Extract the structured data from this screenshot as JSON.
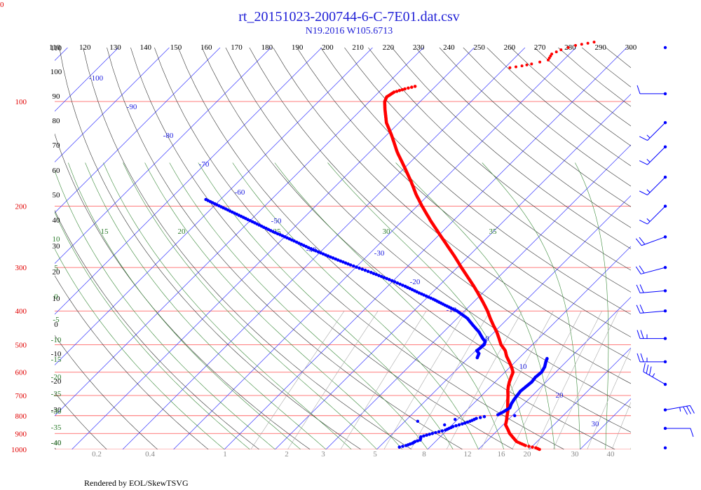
{
  "chart_data": {
    "type": "skew-t",
    "title": "rt_20151023-200744-6-C-7E01.dat.csv",
    "subtitle": "N19.2016 W105.6713",
    "footer": "Rendered by EOL/SkewTSVG",
    "corner_label": "0",
    "pressure_ticks": [
      "100",
      "200",
      "300",
      "400",
      "500",
      "600",
      "700",
      "800",
      "900",
      "1000"
    ],
    "theta_ticks": [
      "110",
      "120",
      "130",
      "140",
      "150",
      "160",
      "170",
      "180",
      "190",
      "200",
      "210",
      "220",
      "230",
      "240",
      "250",
      "260",
      "270",
      "280",
      "290",
      "300"
    ],
    "temperature_ticks": [
      "-100",
      "-90",
      "-80",
      "-70",
      "-60",
      "-50",
      "-40",
      "-30",
      "-20",
      "-10",
      "0",
      "10",
      "20",
      "30"
    ],
    "left_isotherm_ticks": [
      "110",
      "100",
      "90",
      "80",
      "70",
      "60",
      "50",
      "40",
      "30",
      "20",
      "10",
      "0",
      "-10",
      "-20",
      "-30",
      "-40"
    ],
    "moist_adiabat_ticks_top": [
      "15",
      "20",
      "25",
      "30",
      "35"
    ],
    "moist_adiabat_ticks_left": [
      "10",
      "5",
      "0",
      "-5",
      "-10",
      "-15",
      "-20",
      "-25",
      "-30",
      "-35",
      "-40"
    ],
    "mixing_ratio_ticks": [
      "0.2",
      "0.4",
      "1",
      "2",
      "3",
      "5",
      "8",
      "12",
      "16",
      "20",
      "30",
      "40"
    ],
    "temperature_series": {
      "name": "Temperature",
      "color": "#ff0000",
      "points": [
        {
          "p": 1000,
          "t": 22
        },
        {
          "p": 990,
          "t": 21
        },
        {
          "p": 975,
          "t": 18.5
        },
        {
          "p": 950,
          "t": 16
        },
        {
          "p": 925,
          "t": 14.5
        },
        {
          "p": 900,
          "t": 13
        },
        {
          "p": 875,
          "t": 11.8
        },
        {
          "p": 850,
          "t": 10.5
        },
        {
          "p": 825,
          "t": 9.8
        },
        {
          "p": 800,
          "t": 9
        },
        {
          "p": 775,
          "t": 8.2
        },
        {
          "p": 750,
          "t": 7.2
        },
        {
          "p": 725,
          "t": 6.2
        },
        {
          "p": 700,
          "t": 5.2
        },
        {
          "p": 680,
          "t": 4.3
        },
        {
          "p": 660,
          "t": 3.5
        },
        {
          "p": 640,
          "t": 2.8
        },
        {
          "p": 620,
          "t": 2.2
        },
        {
          "p": 600,
          "t": 1.6
        },
        {
          "p": 580,
          "t": 0.3
        },
        {
          "p": 560,
          "t": -1.2
        },
        {
          "p": 540,
          "t": -2.8
        },
        {
          "p": 520,
          "t": -4.2
        },
        {
          "p": 500,
          "t": -6.2
        },
        {
          "p": 480,
          "t": -7.8
        },
        {
          "p": 460,
          "t": -9.5
        },
        {
          "p": 440,
          "t": -11.5
        },
        {
          "p": 420,
          "t": -13.5
        },
        {
          "p": 400,
          "t": -15.5
        },
        {
          "p": 380,
          "t": -17.8
        },
        {
          "p": 360,
          "t": -20.3
        },
        {
          "p": 340,
          "t": -23.0
        },
        {
          "p": 320,
          "t": -26.0
        },
        {
          "p": 300,
          "t": -29.2
        },
        {
          "p": 280,
          "t": -32.5
        },
        {
          "p": 260,
          "t": -36.2
        },
        {
          "p": 240,
          "t": -40.2
        },
        {
          "p": 220,
          "t": -44.5
        },
        {
          "p": 200,
          "t": -49.0
        },
        {
          "p": 185,
          "t": -52.5
        },
        {
          "p": 170,
          "t": -56.0
        },
        {
          "p": 155,
          "t": -60.0
        },
        {
          "p": 140,
          "t": -64.5
        },
        {
          "p": 125,
          "t": -69.0
        },
        {
          "p": 115,
          "t": -72.5
        },
        {
          "p": 105,
          "t": -75.5
        },
        {
          "p": 100,
          "t": -77.0
        },
        {
          "p": 97,
          "t": -77.5
        },
        {
          "p": 94,
          "t": -77.0
        },
        {
          "p": 92,
          "t": -75.5
        },
        {
          "p": 90,
          "t": -73.5
        }
      ],
      "upper_points": [
        {
          "p": 80,
          "t": -59
        },
        {
          "p": 79,
          "t": -57
        },
        {
          "p": 78,
          "t": -55.5
        },
        {
          "p": 76,
          "t": -53
        },
        {
          "p": 73,
          "t": -53.5
        },
        {
          "p": 71,
          "t": -52.5
        },
        {
          "p": 69,
          "t": -50.5
        },
        {
          "p": 68,
          "t": -48.5
        },
        {
          "p": 67,
          "t": -46.5
        }
      ]
    },
    "dewpoint_series": {
      "name": "Dewpoint",
      "color": "#0000ff",
      "points": [
        {
          "p": 985,
          "t": -6.0
        },
        {
          "p": 975,
          "t": -5.0
        },
        {
          "p": 960,
          "t": -4.2
        },
        {
          "p": 950,
          "t": -4.0
        },
        {
          "p": 940,
          "t": -3.3
        },
        {
          "p": 920,
          "t": -3.8
        },
        {
          "p": 900,
          "t": -2.2
        },
        {
          "p": 880,
          "t": -0.3
        },
        {
          "p": 860,
          "t": 0.5
        },
        {
          "p": 845,
          "t": 1.8
        },
        {
          "p": 830,
          "t": 2.8
        },
        {
          "p": 815,
          "t": 3.5
        },
        {
          "p": 800,
          "t": 5.3
        }
      ],
      "extra_points": [
        {
          "p": 800,
          "t": 10.5
        },
        {
          "p": 830,
          "t": -7.5
        },
        {
          "p": 820,
          "t": -0.5
        },
        {
          "p": 850,
          "t": -1.5
        }
      ],
      "mid_points": [
        {
          "p": 795,
          "t": 7.0
        },
        {
          "p": 780,
          "t": 7.5
        },
        {
          "p": 760,
          "t": 8.0
        },
        {
          "p": 740,
          "t": 7.5
        },
        {
          "p": 720,
          "t": 7.2
        },
        {
          "p": 700,
          "t": 7.0
        },
        {
          "p": 680,
          "t": 6.8
        },
        {
          "p": 660,
          "t": 7.0
        },
        {
          "p": 640,
          "t": 7.2
        },
        {
          "p": 620,
          "t": 7.0
        },
        {
          "p": 600,
          "t": 7.2
        },
        {
          "p": 580,
          "t": 6.8
        },
        {
          "p": 560,
          "t": 6.0
        },
        {
          "p": 545,
          "t": 5.5
        }
      ],
      "upper_points": [
        {
          "p": 545,
          "t": -8.3
        },
        {
          "p": 530,
          "t": -8.8
        },
        {
          "p": 520,
          "t": -9.8
        },
        {
          "p": 510,
          "t": -9.6
        },
        {
          "p": 500,
          "t": -9.5
        },
        {
          "p": 490,
          "t": -9.9
        },
        {
          "p": 480,
          "t": -11.0
        },
        {
          "p": 460,
          "t": -13.0
        },
        {
          "p": 440,
          "t": -15.5
        },
        {
          "p": 420,
          "t": -18.0
        },
        {
          "p": 400,
          "t": -21.5
        },
        {
          "p": 385,
          "t": -25.0
        },
        {
          "p": 370,
          "t": -28.5
        },
        {
          "p": 355,
          "t": -32.5
        },
        {
          "p": 340,
          "t": -36.5
        },
        {
          "p": 325,
          "t": -41.0
        },
        {
          "p": 310,
          "t": -46.0
        },
        {
          "p": 295,
          "t": -51.5
        },
        {
          "p": 280,
          "t": -57.0
        },
        {
          "p": 265,
          "t": -62.5
        },
        {
          "p": 250,
          "t": -68.0
        },
        {
          "p": 235,
          "t": -74.0
        },
        {
          "p": 220,
          "t": -80.0
        },
        {
          "p": 205,
          "t": -86.5
        },
        {
          "p": 190,
          "t": -93.5
        }
      ]
    },
    "wind_barbs": [
      {
        "p": 70,
        "dir": 0,
        "speed": 0
      },
      {
        "p": 95,
        "dir": 270,
        "speed": 10
      },
      {
        "p": 115,
        "dir": 225,
        "speed": 15
      },
      {
        "p": 135,
        "dir": 225,
        "speed": 15
      },
      {
        "p": 165,
        "dir": 225,
        "speed": 15
      },
      {
        "p": 200,
        "dir": 225,
        "speed": 15
      },
      {
        "p": 245,
        "dir": 250,
        "speed": 20
      },
      {
        "p": 300,
        "dir": 255,
        "speed": 20
      },
      {
        "p": 350,
        "dir": 265,
        "speed": 20
      },
      {
        "p": 400,
        "dir": 265,
        "speed": 20
      },
      {
        "p": 480,
        "dir": 270,
        "speed": 25
      },
      {
        "p": 560,
        "dir": 270,
        "speed": 25
      },
      {
        "p": 650,
        "dir": 300,
        "speed": 35
      },
      {
        "p": 770,
        "dir": 80,
        "speed": 35
      },
      {
        "p": 870,
        "dir": 90,
        "speed": 10
      },
      {
        "p": 990,
        "dir": 0,
        "speed": 0
      }
    ]
  }
}
